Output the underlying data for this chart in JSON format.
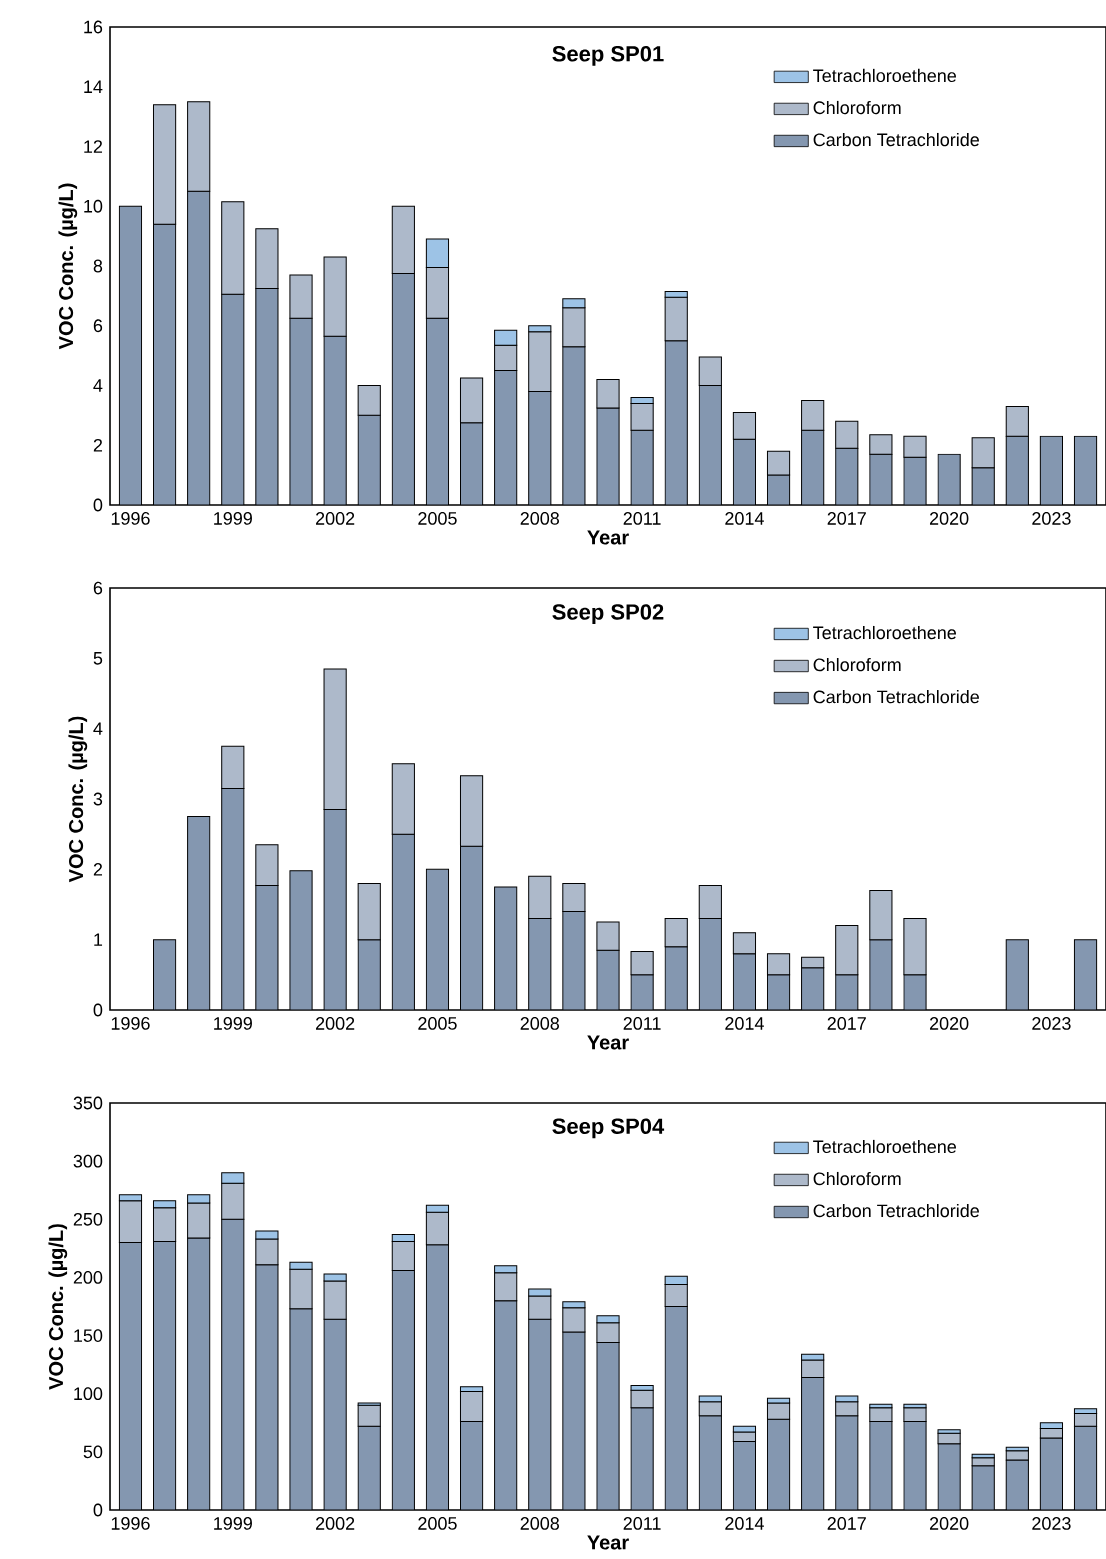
{
  "chart_data": [
    {
      "type": "bar",
      "stacked": true,
      "title": "Seep SP01",
      "xlabel": "Year",
      "ylabel": "VOC Conc. (µg/L)",
      "legend": "top right",
      "x": [
        1996,
        1997,
        1998,
        1999,
        2000,
        2001,
        2002,
        2003,
        2004,
        2005,
        2006,
        2007,
        2008,
        2009,
        2010,
        2011,
        2012,
        2013,
        2014,
        2015,
        2016,
        2017,
        2018,
        2019,
        2020,
        2021,
        2022,
        2023,
        2024
      ],
      "xlim": [
        1995.4,
        2024.6
      ],
      "xticks": [
        1996,
        1999,
        2002,
        2005,
        2008,
        2011,
        2014,
        2017,
        2020,
        2023
      ],
      "ylim": [
        0,
        16
      ],
      "yticks": [
        0,
        2,
        4,
        6,
        8,
        10,
        12,
        14,
        16
      ],
      "series": [
        {
          "name": "Carbon Tetrachloride",
          "color": "#8497b0",
          "values": [
            10,
            9.4,
            10.5,
            7.05,
            7.25,
            6.25,
            5.65,
            3.0,
            7.75,
            6.25,
            2.75,
            4.5,
            3.8,
            5.3,
            3.25,
            2.5,
            5.5,
            4.0,
            2.2,
            1.0,
            2.5,
            1.9,
            1.7,
            1.6,
            1.7,
            1.25,
            2.3,
            2.3,
            2.3
          ]
        },
        {
          "name": "Chloroform",
          "color": "#adb9ca",
          "values": [
            null,
            4.0,
            3.0,
            3.1,
            2.0,
            1.45,
            2.65,
            1.0,
            2.25,
            1.7,
            1.5,
            0.85,
            2.0,
            1.3,
            0.95,
            0.9,
            1.45,
            0.95,
            0.9,
            0.8,
            1.0,
            0.9,
            0.65,
            0.7,
            null,
            1.0,
            1.0,
            null,
            null
          ]
        },
        {
          "name": "Tetrachloroethene",
          "color": "#9dc3e6",
          "values": [
            null,
            null,
            null,
            null,
            null,
            null,
            null,
            null,
            null,
            0.95,
            null,
            0.5,
            0.2,
            0.3,
            null,
            0.2,
            0.2,
            null,
            null,
            null,
            null,
            null,
            null,
            null,
            null,
            null,
            null,
            null,
            null
          ]
        }
      ]
    },
    {
      "type": "bar",
      "stacked": true,
      "title": "Seep SP02",
      "xlabel": "Year",
      "ylabel": "VOC Conc. (µg/L)",
      "legend": "top right",
      "x": [
        1997,
        1998,
        1999,
        2000,
        2001,
        2002,
        2003,
        2004,
        2005,
        2006,
        2007,
        2008,
        2009,
        2010,
        2011,
        2012,
        2013,
        2014,
        2015,
        2016,
        2017,
        2018,
        2019,
        2020,
        2021,
        2022,
        2023,
        2024
      ],
      "xlim": [
        1995.4,
        2024.6
      ],
      "xticks": [
        1996,
        1999,
        2002,
        2005,
        2008,
        2011,
        2014,
        2017,
        2020,
        2023
      ],
      "ylim": [
        0,
        6
      ],
      "yticks": [
        0,
        1,
        2,
        3,
        4,
        5,
        6
      ],
      "series": [
        {
          "name": "Carbon Tetrachloride",
          "color": "#8497b0",
          "values": [
            1.0,
            2.75,
            3.15,
            1.77,
            1.98,
            2.85,
            1.0,
            2.5,
            2.0,
            2.33,
            1.75,
            1.3,
            1.4,
            0.85,
            0.5,
            0.9,
            1.3,
            0.8,
            0.5,
            0.6,
            0.5,
            1.0,
            0.5,
            null,
            null,
            1.0,
            null,
            1.0
          ]
        },
        {
          "name": "Chloroform",
          "color": "#adb9ca",
          "values": [
            null,
            null,
            0.6,
            0.58,
            null,
            2.0,
            0.8,
            1.0,
            null,
            1.0,
            null,
            0.6,
            0.4,
            0.4,
            0.33,
            0.4,
            0.47,
            0.3,
            0.3,
            0.15,
            0.7,
            0.7,
            0.8,
            null,
            null,
            null,
            null,
            null
          ]
        },
        {
          "name": "Tetrachloroethene",
          "color": "#9dc3e6",
          "values": [
            null,
            null,
            null,
            null,
            null,
            null,
            null,
            null,
            null,
            null,
            null,
            null,
            null,
            null,
            null,
            null,
            null,
            null,
            null,
            null,
            null,
            null,
            null,
            null,
            null,
            null,
            null,
            null
          ]
        }
      ]
    },
    {
      "type": "bar",
      "stacked": true,
      "title": "Seep SP04",
      "xlabel": "Year",
      "ylabel": "VOC Conc. (µg/L)",
      "legend": "top right",
      "x": [
        1996,
        1997,
        1998,
        1999,
        2000,
        2001,
        2002,
        2003,
        2004,
        2005,
        2006,
        2007,
        2008,
        2009,
        2010,
        2011,
        2012,
        2013,
        2014,
        2015,
        2016,
        2017,
        2018,
        2019,
        2020,
        2021,
        2022,
        2023,
        2024
      ],
      "xlim": [
        1995.4,
        2024.6
      ],
      "xticks": [
        1996,
        1999,
        2002,
        2005,
        2008,
        2011,
        2014,
        2017,
        2020,
        2023
      ],
      "ylim": [
        0,
        350
      ],
      "yticks": [
        0,
        50,
        100,
        150,
        200,
        250,
        300,
        350
      ],
      "series": [
        {
          "name": "Carbon Tetrachloride",
          "color": "#8497b0",
          "values": [
            230,
            231,
            234,
            250,
            211,
            173,
            164,
            72,
            206,
            228,
            76,
            180,
            164,
            153,
            144,
            88,
            175,
            81,
            59,
            78,
            114,
            81,
            76,
            76,
            57,
            38,
            43,
            62,
            72
          ]
        },
        {
          "name": "Chloroform",
          "color": "#adb9ca",
          "values": [
            36,
            29,
            30,
            31,
            22,
            34,
            33,
            18,
            25,
            28,
            26,
            24,
            20,
            21,
            17,
            15,
            19,
            12,
            8,
            14,
            15,
            12,
            12,
            12,
            9,
            7,
            8,
            8,
            11
          ]
        },
        {
          "name": "Tetrachloroethene",
          "color": "#9dc3e6",
          "values": [
            5,
            6,
            7,
            9,
            7,
            6,
            6,
            2,
            6,
            6,
            4,
            6,
            6,
            5,
            6,
            4,
            7,
            5,
            5,
            4,
            5,
            5,
            3,
            3,
            3,
            3,
            3,
            5,
            4
          ]
        }
      ]
    }
  ]
}
